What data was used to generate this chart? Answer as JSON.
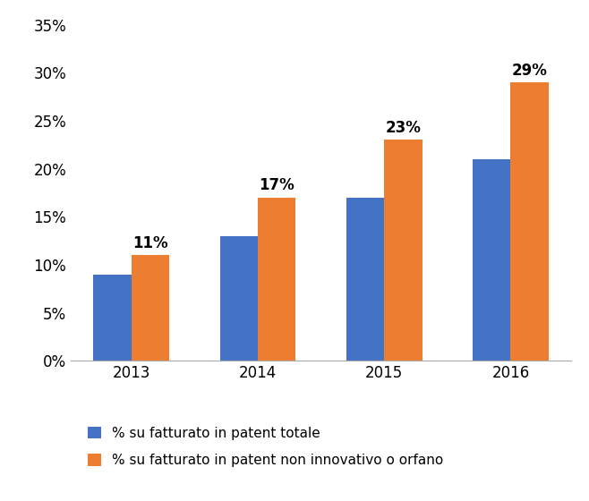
{
  "categories": [
    "2013",
    "2014",
    "2015",
    "2016"
  ],
  "blue_values": [
    0.09,
    0.13,
    0.17,
    0.21
  ],
  "orange_values": [
    0.11,
    0.17,
    0.23,
    0.29
  ],
  "orange_labels": [
    "11%",
    "17%",
    "23%",
    "29%"
  ],
  "blue_color": "#4472C4",
  "orange_color": "#ED7D31",
  "ylim": [
    0,
    0.36
  ],
  "yticks": [
    0.0,
    0.05,
    0.1,
    0.15,
    0.2,
    0.25,
    0.3,
    0.35
  ],
  "legend_labels": [
    "% su fatturato in patent totale",
    "% su fatturato in patent non innovativo o orfano"
  ],
  "background_color": "#FFFFFF",
  "plot_bg_color": "#F2F2F2",
  "bar_width": 0.3,
  "annotation_fontsize": 12,
  "axis_tick_fontsize": 12,
  "legend_fontsize": 11
}
